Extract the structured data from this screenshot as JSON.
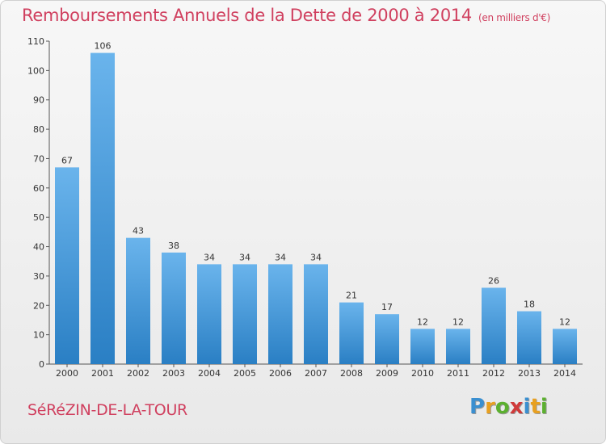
{
  "header": {
    "title": "Remboursements Annuels de la Dette de 2000 à 2014",
    "unit": "(en milliers d'€)"
  },
  "footer": {
    "commune": "SéRéZIN-DE-LA-TOUR",
    "logo_letters": [
      "P",
      "r",
      "o",
      "x",
      "i",
      "t",
      "i"
    ],
    "logo_colors": [
      "#3a8fd0",
      "#e8a020",
      "#5cb030",
      "#d03a3a",
      "#3a8fd0",
      "#e8a020",
      "#5cb030"
    ]
  },
  "chart_data": {
    "type": "bar",
    "title": "Remboursements Annuels de la Dette de 2000 à 2014",
    "subtitle": "(en milliers d'€)",
    "categories": [
      "2000",
      "2001",
      "2002",
      "2003",
      "2004",
      "2005",
      "2006",
      "2007",
      "2008",
      "2009",
      "2010",
      "2011",
      "2012",
      "2013",
      "2014"
    ],
    "values": [
      67,
      106,
      43,
      38,
      34,
      34,
      34,
      34,
      21,
      17,
      12,
      12,
      26,
      18,
      12
    ],
    "ylim": [
      0,
      110
    ],
    "yticks": [
      0,
      10,
      20,
      30,
      40,
      50,
      60,
      70,
      80,
      90,
      100,
      110
    ],
    "grid": false,
    "bar_color_top": "#6ab4ec",
    "bar_color_bottom": "#2a7fc4"
  }
}
